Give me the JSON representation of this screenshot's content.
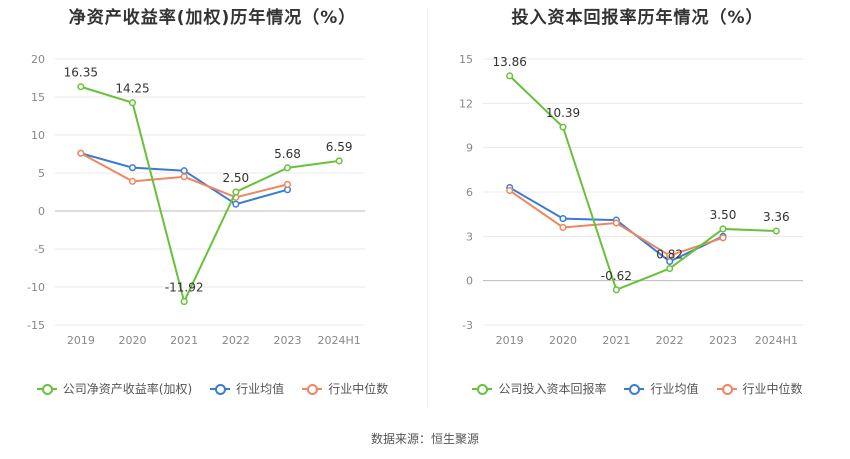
{
  "chart_data": [
    {
      "type": "line",
      "title": "净资产收益率(加权)历年情况（%）",
      "categories": [
        "2019",
        "2020",
        "2021",
        "2022",
        "2023",
        "2024H1"
      ],
      "ylim": [
        -15,
        20
      ],
      "yticks": [
        -15,
        -10,
        -5,
        0,
        5,
        10,
        15,
        20
      ],
      "grid": true,
      "legend_position": "bottom",
      "series": [
        {
          "name": "公司净资产收益率(加权)",
          "color": "#67c23a",
          "values": [
            16.35,
            14.25,
            -11.92,
            2.5,
            5.68,
            6.59
          ],
          "labels": [
            "16.35",
            "14.25",
            "-11.92",
            "2.50",
            "5.68",
            "6.59"
          ]
        },
        {
          "name": "行业均值",
          "color": "#3a7bd5",
          "values": [
            7.6,
            5.7,
            5.3,
            0.9,
            2.8,
            null
          ]
        },
        {
          "name": "行业中位数",
          "color": "#ee8660",
          "values": [
            7.6,
            3.9,
            4.5,
            1.8,
            3.5,
            null
          ]
        }
      ]
    },
    {
      "type": "line",
      "title": "投入资本回报率历年情况（%）",
      "categories": [
        "2019",
        "2020",
        "2021",
        "2022",
        "2023",
        "2024H1"
      ],
      "ylim": [
        -3,
        15
      ],
      "yticks": [
        -3,
        0,
        3,
        6,
        9,
        12,
        15
      ],
      "grid": true,
      "legend_position": "bottom",
      "series": [
        {
          "name": "公司投入资本回报率",
          "color": "#67c23a",
          "values": [
            13.86,
            10.39,
            -0.62,
            0.82,
            3.5,
            3.36
          ],
          "labels": [
            "13.86",
            "10.39",
            "-0.62",
            "0.82",
            "3.50",
            "3.36"
          ]
        },
        {
          "name": "行业均值",
          "color": "#3a7bd5",
          "values": [
            6.3,
            4.2,
            4.1,
            1.3,
            3.0,
            null
          ]
        },
        {
          "name": "行业中位数",
          "color": "#ee8660",
          "values": [
            6.1,
            3.6,
            3.9,
            1.7,
            2.9,
            null
          ]
        }
      ]
    }
  ],
  "footer": {
    "source": "数据来源：恒生聚源"
  }
}
